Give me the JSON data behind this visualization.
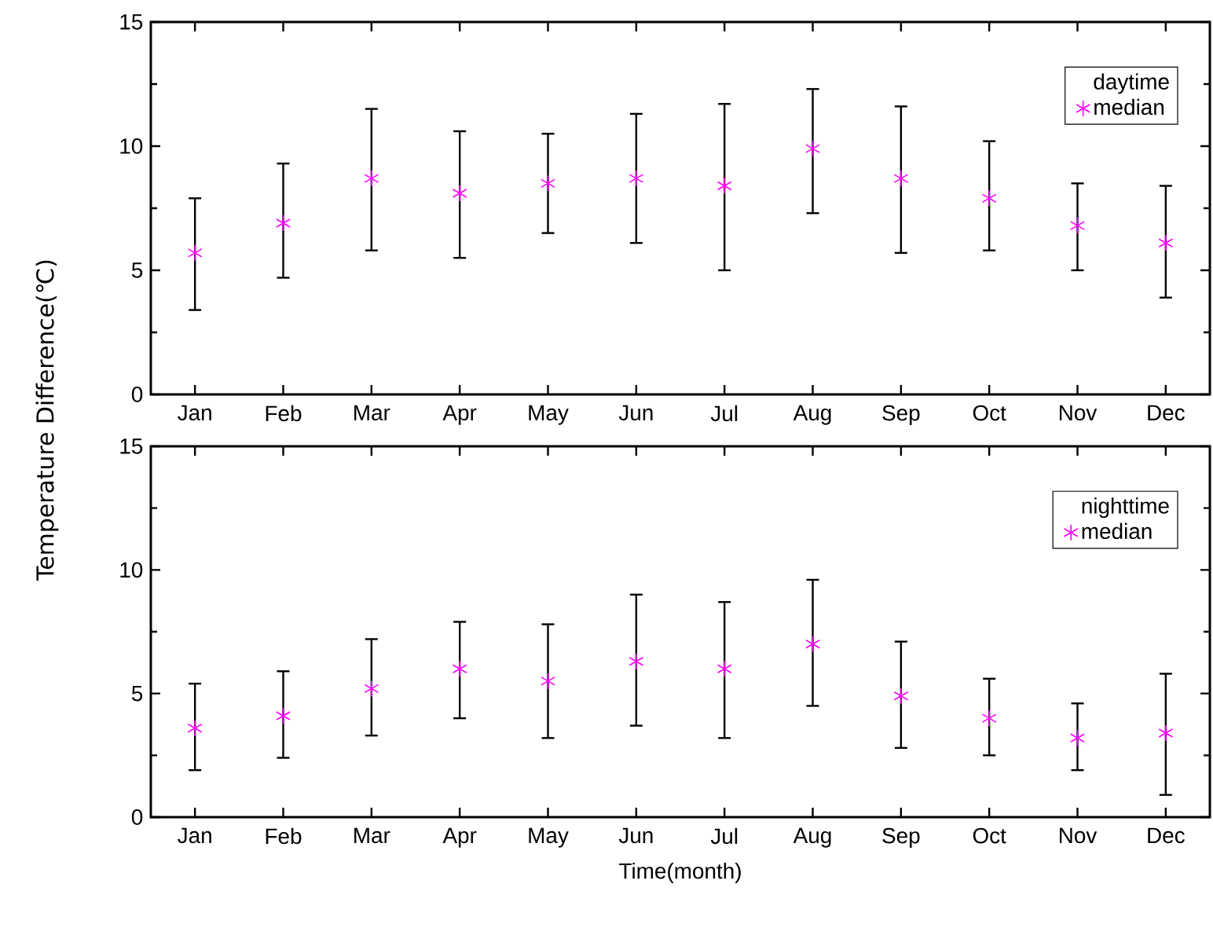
{
  "chart_data": [
    {
      "type": "scatter",
      "ylabel": "Temperature Difference(℃)",
      "legend_title": "daytime",
      "legend": "top right",
      "marker": "cross",
      "categories": [
        "Jan",
        "Feb",
        "Mar",
        "Apr",
        "May",
        "Jun",
        "Jul",
        "Aug",
        "Sep",
        "Oct",
        "Nov",
        "Dec"
      ],
      "ylim": [
        0,
        15
      ],
      "yticks": [
        0,
        5,
        10,
        15
      ],
      "series": [
        {
          "name": "median",
          "color": "#ff00ff",
          "values": [
            5.7,
            6.9,
            8.7,
            8.1,
            8.5,
            8.7,
            8.4,
            9.9,
            8.7,
            7.9,
            6.8,
            6.1
          ],
          "errors": [
            [
              3.4,
              7.9
            ],
            [
              4.7,
              9.3
            ],
            [
              5.8,
              11.5
            ],
            [
              5.5,
              10.6
            ],
            [
              6.5,
              10.5
            ],
            [
              6.1,
              11.3
            ],
            [
              5.0,
              11.7
            ],
            [
              7.3,
              12.3
            ],
            [
              5.7,
              11.6
            ],
            [
              5.8,
              10.2
            ],
            [
              5.0,
              8.5
            ],
            [
              3.9,
              8.4
            ]
          ]
        }
      ]
    },
    {
      "type": "scatter",
      "xlabel": "Time(month)",
      "legend_title": "nighttime",
      "legend": "top right",
      "marker": "cross",
      "categories": [
        "Jan",
        "Feb",
        "Mar",
        "Apr",
        "May",
        "Jun",
        "Jul",
        "Aug",
        "Sep",
        "Oct",
        "Nov",
        "Dec"
      ],
      "ylim": [
        0,
        15
      ],
      "yticks": [
        0,
        5,
        10,
        15
      ],
      "series": [
        {
          "name": "median",
          "color": "#ff00ff",
          "values": [
            3.6,
            4.1,
            5.2,
            6.0,
            5.5,
            6.3,
            6.0,
            7.0,
            4.9,
            4.0,
            3.2,
            3.4
          ],
          "errors": [
            [
              1.9,
              5.4
            ],
            [
              2.4,
              5.9
            ],
            [
              3.3,
              7.2
            ],
            [
              4.0,
              7.9
            ],
            [
              3.2,
              7.8
            ],
            [
              3.7,
              9.0
            ],
            [
              3.2,
              8.7
            ],
            [
              4.5,
              9.6
            ],
            [
              2.8,
              7.1
            ],
            [
              2.5,
              5.6
            ],
            [
              1.9,
              4.6
            ],
            [
              0.9,
              5.8
            ]
          ]
        }
      ]
    }
  ]
}
